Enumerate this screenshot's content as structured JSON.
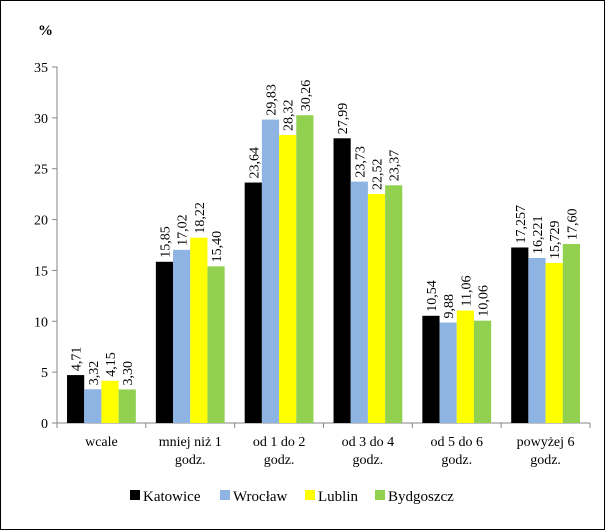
{
  "chart_data": {
    "type": "bar",
    "unit_label": "%",
    "ylim": [
      0,
      35
    ],
    "yticks": [
      "0",
      "5",
      "10",
      "15",
      "20",
      "25",
      "30",
      "35"
    ],
    "grid": false,
    "legend_position": "bottom",
    "categories": [
      [
        "wcale"
      ],
      [
        "mniej niż 1",
        "godz."
      ],
      [
        "od 1 do 2",
        "godz."
      ],
      [
        "od 3 do 4",
        "godz."
      ],
      [
        "od 5 do 6",
        "godz."
      ],
      [
        "powyżej 6",
        "godz."
      ]
    ],
    "series": [
      {
        "name": "Katowice",
        "color": "#000000",
        "values": [
          4.71,
          15.85,
          23.64,
          27.99,
          10.54,
          17.257
        ],
        "labels": [
          "4,71",
          "15,85",
          "23,64",
          "27,99",
          "10,54",
          "17,257"
        ]
      },
      {
        "name": "Wrocław",
        "color": "#8EB4E3",
        "values": [
          3.32,
          17.02,
          29.83,
          23.73,
          9.88,
          16.221
        ],
        "labels": [
          "3,32",
          "17,02",
          "29,83",
          "23,73",
          "9,88",
          "16,221"
        ]
      },
      {
        "name": "Lublin",
        "color": "#FFFF00",
        "values": [
          4.15,
          18.22,
          28.32,
          22.52,
          11.06,
          15.729
        ],
        "labels": [
          "4,15",
          "18,22",
          "28,32",
          "22,52",
          "11,06",
          "15,729"
        ]
      },
      {
        "name": "Bydgoszcz",
        "color": "#92D050",
        "values": [
          3.3,
          15.4,
          30.26,
          23.37,
          10.06,
          17.6
        ],
        "labels": [
          "3,30",
          "15,40",
          "30,26",
          "23,37",
          "10,06",
          "17,60"
        ]
      }
    ]
  }
}
